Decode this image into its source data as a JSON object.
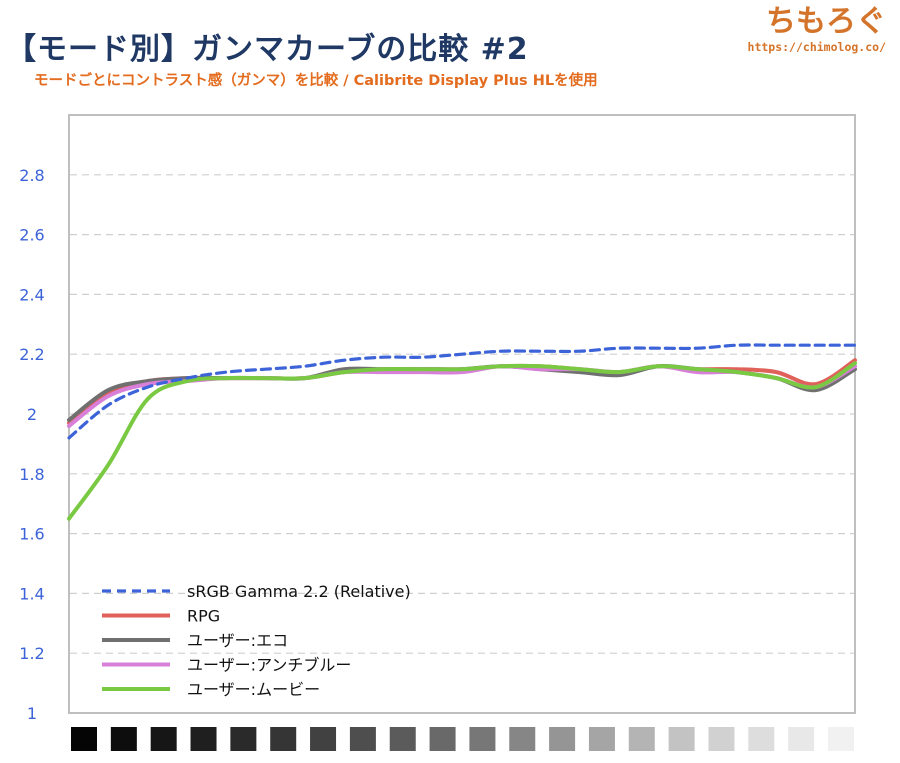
{
  "header": {
    "title": "【モード別】ガンマカーブの比較 #2",
    "subtitle": "モードごとにコントラスト感（ガンマ）を比較 / Calibrite Display Plus HLを使用"
  },
  "brand": {
    "name": "ちもろぐ",
    "url": "https://chimolog.co/"
  },
  "chart_data": {
    "type": "line",
    "title": "【モード別】ガンマカーブの比較 #2",
    "xlabel": "",
    "ylabel": "",
    "ylim": [
      1,
      3
    ],
    "yticks": [
      "1",
      "1.2",
      "1.4",
      "1.6",
      "1.8",
      "2",
      "2.2",
      "2.4",
      "2.6",
      "2.8"
    ],
    "grid": true,
    "legend_position": "bottom-left",
    "x": [
      1,
      2,
      3,
      4,
      5,
      6,
      7,
      8,
      9,
      10,
      11,
      12,
      13,
      14,
      15,
      16,
      17,
      18,
      19,
      20,
      21
    ],
    "series": [
      {
        "name": "sRGB Gamma 2.2 (Relative)",
        "color": "#3c63d8",
        "dashed": true,
        "values": [
          1.92,
          2.03,
          2.09,
          2.12,
          2.14,
          2.15,
          2.16,
          2.18,
          2.19,
          2.19,
          2.2,
          2.21,
          2.21,
          2.21,
          2.22,
          2.22,
          2.22,
          2.23,
          2.23,
          2.23,
          2.23
        ]
      },
      {
        "name": "RPG",
        "color": "#e0605a",
        "dashed": false,
        "values": [
          1.97,
          2.07,
          2.11,
          2.12,
          2.12,
          2.12,
          2.12,
          2.14,
          2.15,
          2.15,
          2.15,
          2.16,
          2.16,
          2.15,
          2.14,
          2.16,
          2.15,
          2.15,
          2.14,
          2.1,
          2.18
        ]
      },
      {
        "name": "ユーザー:エコ",
        "color": "#707070",
        "dashed": false,
        "values": [
          1.98,
          2.08,
          2.11,
          2.12,
          2.12,
          2.12,
          2.12,
          2.15,
          2.15,
          2.15,
          2.15,
          2.16,
          2.15,
          2.14,
          2.13,
          2.16,
          2.15,
          2.14,
          2.12,
          2.08,
          2.15
        ]
      },
      {
        "name": "ユーザー:アンチブルー",
        "color": "#d77fd9",
        "dashed": false,
        "values": [
          1.96,
          2.06,
          2.1,
          2.11,
          2.12,
          2.12,
          2.12,
          2.14,
          2.14,
          2.14,
          2.14,
          2.16,
          2.15,
          2.15,
          2.14,
          2.16,
          2.14,
          2.14,
          2.12,
          2.09,
          2.16
        ]
      },
      {
        "name": "ユーザー:ムービー",
        "color": "#7ac943",
        "dashed": false,
        "values": [
          1.65,
          1.83,
          2.05,
          2.11,
          2.12,
          2.12,
          2.12,
          2.14,
          2.15,
          2.15,
          2.15,
          2.16,
          2.16,
          2.15,
          2.14,
          2.16,
          2.15,
          2.14,
          2.12,
          2.09,
          2.17
        ]
      }
    ],
    "gray_swatches": [
      "#050505",
      "#0d0d0d",
      "#161616",
      "#1f1f1f",
      "#2a2a2a",
      "#353535",
      "#414141",
      "#4e4e4e",
      "#5b5b5b",
      "#696969",
      "#777777",
      "#868686",
      "#959595",
      "#a5a5a5",
      "#b4b4b4",
      "#c3c3c3",
      "#d1d1d1",
      "#dddddd",
      "#e8e8e8",
      "#f1f1f1"
    ]
  }
}
